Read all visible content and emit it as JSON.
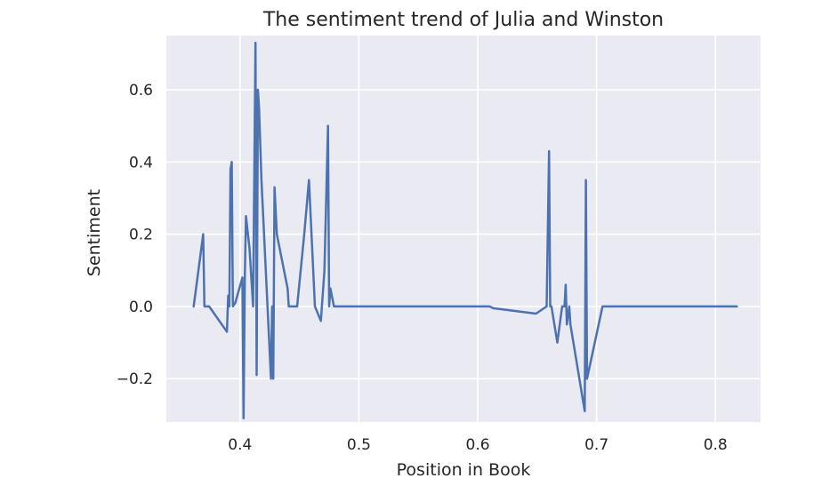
{
  "chart_data": {
    "type": "line",
    "title": "The sentiment trend of Julia and Winston",
    "xlabel": "Position in Book",
    "ylabel": "Sentiment",
    "xlim": [
      0.338,
      0.838
    ],
    "ylim": [
      -0.32,
      0.75
    ],
    "xticks": [
      0.4,
      0.5,
      0.6,
      0.7,
      0.8
    ],
    "xtick_labels": [
      "0.4",
      "0.5",
      "0.6",
      "0.7",
      "0.8"
    ],
    "yticks": [
      -0.2,
      0.0,
      0.2,
      0.4,
      0.6
    ],
    "ytick_labels": [
      "−0.2",
      "0.0",
      "0.2",
      "0.4",
      "0.6"
    ],
    "grid": true,
    "legend": "none",
    "background_color": "#eaeaf2",
    "series": [
      {
        "color": "#4c72b0",
        "x": [
          0.361,
          0.369,
          0.37,
          0.374,
          0.389,
          0.39,
          0.391,
          0.392,
          0.393,
          0.394,
          0.396,
          0.402,
          0.403,
          0.404,
          0.405,
          0.408,
          0.411,
          0.413,
          0.414,
          0.415,
          0.416,
          0.418,
          0.426,
          0.427,
          0.428,
          0.429,
          0.431,
          0.44,
          0.441,
          0.444,
          0.448,
          0.454,
          0.458,
          0.463,
          0.468,
          0.471,
          0.474,
          0.475,
          0.476,
          0.479,
          0.61,
          0.613,
          0.649,
          0.658,
          0.66,
          0.661,
          0.662,
          0.667,
          0.671,
          0.673,
          0.674,
          0.675,
          0.677,
          0.678,
          0.69,
          0.691,
          0.692,
          0.705,
          0.818
        ],
        "y": [
          0.0,
          0.2,
          0.0,
          0.0,
          -0.07,
          0.03,
          0.0,
          0.38,
          0.4,
          0.0,
          0.01,
          0.08,
          -0.31,
          0.08,
          0.25,
          0.16,
          0.0,
          0.73,
          -0.19,
          0.6,
          0.55,
          0.35,
          -0.2,
          0.0,
          -0.2,
          0.33,
          0.2,
          0.05,
          0.0,
          0.0,
          0.0,
          0.2,
          0.35,
          0.0,
          -0.04,
          0.1,
          0.5,
          0.0,
          0.05,
          0.0,
          0.0,
          -0.005,
          -0.02,
          0.0,
          0.43,
          0.0,
          0.0,
          -0.1,
          0.0,
          0.0,
          0.06,
          -0.05,
          0.0,
          -0.05,
          -0.29,
          0.35,
          -0.2,
          0.0,
          0.0
        ]
      }
    ]
  }
}
